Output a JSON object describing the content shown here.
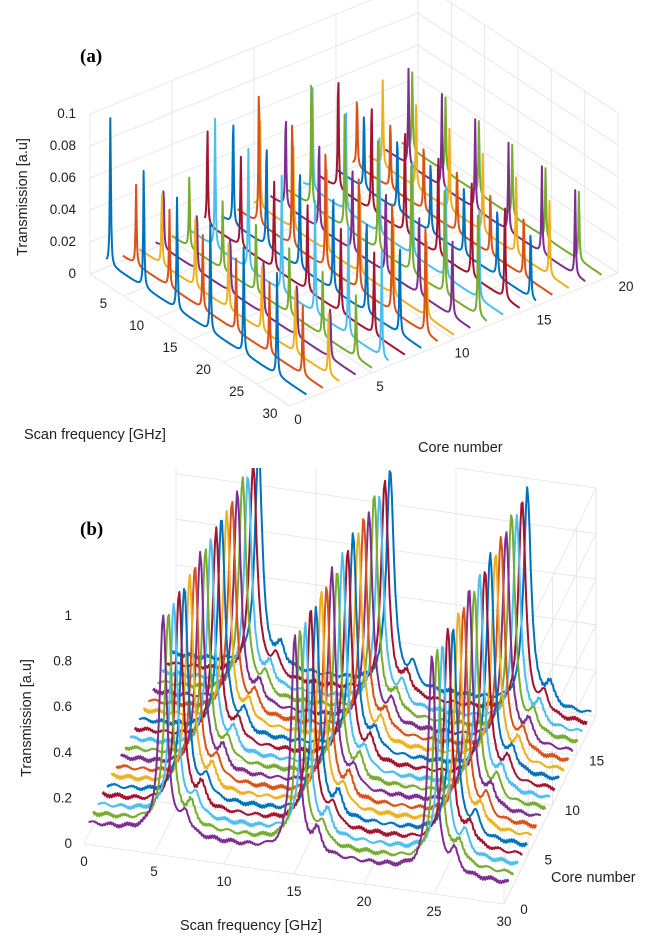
{
  "chart_data": [
    {
      "panel_label": "(a)",
      "type": "line",
      "projection": "3d-waterfall",
      "grid": true,
      "title": "",
      "xlabel": "Scan frequency [GHz]",
      "ylabel": "Core number",
      "zlabel": "Transmission [a.u]",
      "xlim": [
        0,
        30
      ],
      "ylim": [
        0,
        20
      ],
      "zlim": [
        0,
        0.1
      ],
      "x_ticks": [
        "5",
        "10",
        "15",
        "20",
        "25",
        "30"
      ],
      "y_ticks": [
        "0",
        "5",
        "10",
        "15",
        "20"
      ],
      "z_ticks": [
        "0",
        "0.02",
        "0.04",
        "0.06",
        "0.08",
        "0.1"
      ],
      "series_colors": [
        "#0072BD",
        "#D95319",
        "#EDB120",
        "#7E2F8E",
        "#77AC30",
        "#4DBEEE",
        "#A2142F"
      ],
      "series": [
        {
          "core": 1,
          "baseline": 0.003,
          "peaks": [
            {
              "x": 0.6,
              "h": 0.095
            },
            {
              "x": 5.6,
              "h": 0.075
            },
            {
              "x": 10.6,
              "h": 0.072
            },
            {
              "x": 15.6,
              "h": 0.07
            },
            {
              "x": 20.6,
              "h": 0.068
            },
            {
              "x": 25.6,
              "h": 0.066
            }
          ]
        },
        {
          "core": 2,
          "baseline": 0.003,
          "peaks": [
            {
              "x": 2.0,
              "h": 0.05
            },
            {
              "x": 7.0,
              "h": 0.048
            },
            {
              "x": 12.0,
              "h": 0.046
            },
            {
              "x": 17.0,
              "h": 0.045
            },
            {
              "x": 22.0,
              "h": 0.044
            },
            {
              "x": 27.0,
              "h": 0.043
            }
          ]
        },
        {
          "core": 3,
          "baseline": 0.003,
          "peaks": [
            {
              "x": 3.4,
              "h": 0.045
            },
            {
              "x": 8.4,
              "h": 0.043
            },
            {
              "x": 13.4,
              "h": 0.042
            },
            {
              "x": 18.4,
              "h": 0.041
            },
            {
              "x": 23.4,
              "h": 0.04
            },
            {
              "x": 28.4,
              "h": 0.039
            }
          ]
        },
        {
          "core": 4,
          "baseline": 0.003,
          "peaks": [
            {
              "x": 1.2,
              "h": 0.04
            },
            {
              "x": 6.2,
              "h": 0.038
            },
            {
              "x": 11.2,
              "h": 0.037
            },
            {
              "x": 16.2,
              "h": 0.036
            },
            {
              "x": 21.2,
              "h": 0.035
            },
            {
              "x": 26.2,
              "h": 0.034
            }
          ]
        },
        {
          "core": 5,
          "baseline": 0.003,
          "peaks": [
            {
              "x": 2.6,
              "h": 0.045
            },
            {
              "x": 7.6,
              "h": 0.044
            },
            {
              "x": 12.6,
              "h": 0.043
            },
            {
              "x": 17.6,
              "h": 0.042
            },
            {
              "x": 22.6,
              "h": 0.041
            },
            {
              "x": 27.6,
              "h": 0.04
            }
          ]
        },
        {
          "core": 6,
          "baseline": 0.003,
          "peaks": [
            {
              "x": 4.0,
              "h": 0.08
            },
            {
              "x": 9.0,
              "h": 0.075
            },
            {
              "x": 14.0,
              "h": 0.072
            },
            {
              "x": 19.0,
              "h": 0.07
            },
            {
              "x": 24.0,
              "h": 0.068
            },
            {
              "x": 29.0,
              "h": 0.066
            }
          ]
        },
        {
          "core": 7,
          "baseline": 0.003,
          "peaks": [
            {
              "x": 0.4,
              "h": 0.06
            },
            {
              "x": 5.4,
              "h": 0.058
            },
            {
              "x": 10.4,
              "h": 0.056
            },
            {
              "x": 15.4,
              "h": 0.055
            },
            {
              "x": 20.4,
              "h": 0.054
            },
            {
              "x": 25.4,
              "h": 0.053
            }
          ]
        },
        {
          "core": 8,
          "baseline": 0.003,
          "peaks": [
            {
              "x": 1.8,
              "h": 0.07
            },
            {
              "x": 6.8,
              "h": 0.068
            },
            {
              "x": 11.8,
              "h": 0.066
            },
            {
              "x": 16.8,
              "h": 0.064
            },
            {
              "x": 21.8,
              "h": 0.062
            },
            {
              "x": 26.8,
              "h": 0.06
            }
          ]
        },
        {
          "core": 9,
          "baseline": 0.003,
          "peaks": [
            {
              "x": 3.2,
              "h": 0.09
            },
            {
              "x": 8.2,
              "h": 0.085
            },
            {
              "x": 13.2,
              "h": 0.08
            },
            {
              "x": 18.2,
              "h": 0.078
            },
            {
              "x": 23.2,
              "h": 0.076
            },
            {
              "x": 28.2,
              "h": 0.074
            }
          ]
        },
        {
          "core": 10,
          "baseline": 0.003,
          "peaks": [
            {
              "x": 0.9,
              "h": 0.055
            },
            {
              "x": 5.9,
              "h": 0.053
            },
            {
              "x": 10.9,
              "h": 0.052
            },
            {
              "x": 15.9,
              "h": 0.05
            },
            {
              "x": 20.9,
              "h": 0.049
            },
            {
              "x": 25.9,
              "h": 0.048
            }
          ]
        },
        {
          "core": 11,
          "baseline": 0.003,
          "peaks": [
            {
              "x": 2.3,
              "h": 0.06
            },
            {
              "x": 7.3,
              "h": 0.058
            },
            {
              "x": 12.3,
              "h": 0.056
            },
            {
              "x": 17.3,
              "h": 0.055
            },
            {
              "x": 22.3,
              "h": 0.054
            },
            {
              "x": 27.3,
              "h": 0.053
            }
          ]
        },
        {
          "core": 12,
          "baseline": 0.003,
          "peaks": [
            {
              "x": 3.7,
              "h": 0.085
            },
            {
              "x": 8.7,
              "h": 0.08
            },
            {
              "x": 13.7,
              "h": 0.077
            },
            {
              "x": 18.7,
              "h": 0.075
            },
            {
              "x": 23.7,
              "h": 0.073
            },
            {
              "x": 28.7,
              "h": 0.071
            }
          ]
        },
        {
          "core": 13,
          "baseline": 0.003,
          "peaks": [
            {
              "x": 1.4,
              "h": 0.065
            },
            {
              "x": 6.4,
              "h": 0.063
            },
            {
              "x": 11.4,
              "h": 0.061
            },
            {
              "x": 16.4,
              "h": 0.06
            },
            {
              "x": 21.4,
              "h": 0.058
            },
            {
              "x": 26.4,
              "h": 0.057
            }
          ]
        },
        {
          "core": 14,
          "baseline": 0.003,
          "peaks": [
            {
              "x": 2.8,
              "h": 0.075
            },
            {
              "x": 7.8,
              "h": 0.072
            },
            {
              "x": 12.8,
              "h": 0.07
            },
            {
              "x": 17.8,
              "h": 0.068
            },
            {
              "x": 22.8,
              "h": 0.066
            },
            {
              "x": 27.8,
              "h": 0.064
            }
          ]
        },
        {
          "core": 15,
          "baseline": 0.003,
          "peaks": [
            {
              "x": 4.2,
              "h": 0.05
            },
            {
              "x": 9.2,
              "h": 0.048
            },
            {
              "x": 14.2,
              "h": 0.047
            },
            {
              "x": 19.2,
              "h": 0.046
            },
            {
              "x": 24.2,
              "h": 0.045
            },
            {
              "x": 29.2,
              "h": 0.044
            }
          ]
        },
        {
          "core": 16,
          "baseline": 0.003,
          "peaks": [
            {
              "x": 0.7,
              "h": 0.045
            },
            {
              "x": 5.7,
              "h": 0.044
            },
            {
              "x": 10.7,
              "h": 0.043
            },
            {
              "x": 15.7,
              "h": 0.042
            },
            {
              "x": 20.7,
              "h": 0.041
            },
            {
              "x": 25.7,
              "h": 0.04
            }
          ]
        },
        {
          "core": 17,
          "baseline": 0.003,
          "peaks": [
            {
              "x": 2.1,
              "h": 0.055
            },
            {
              "x": 7.1,
              "h": 0.053
            },
            {
              "x": 12.1,
              "h": 0.052
            },
            {
              "x": 17.1,
              "h": 0.05
            },
            {
              "x": 22.1,
              "h": 0.049
            },
            {
              "x": 27.1,
              "h": 0.048
            }
          ]
        },
        {
          "core": 18,
          "baseline": 0.003,
          "peaks": [
            {
              "x": 3.5,
              "h": 0.06
            },
            {
              "x": 8.5,
              "h": 0.058
            },
            {
              "x": 13.5,
              "h": 0.056
            },
            {
              "x": 18.5,
              "h": 0.055
            },
            {
              "x": 23.5,
              "h": 0.054
            },
            {
              "x": 28.5,
              "h": 0.053
            }
          ]
        },
        {
          "core": 19,
          "baseline": 0.003,
          "peaks": [
            {
              "x": 1.6,
              "h": 0.05
            },
            {
              "x": 6.6,
              "h": 0.048
            },
            {
              "x": 11.6,
              "h": 0.047
            },
            {
              "x": 16.6,
              "h": 0.046
            },
            {
              "x": 21.6,
              "h": 0.045
            },
            {
              "x": 26.6,
              "h": 0.044
            }
          ]
        }
      ]
    },
    {
      "panel_label": "(b)",
      "type": "line",
      "projection": "3d-waterfall",
      "grid": true,
      "title": "",
      "xlabel": "Scan frequency [GHz]",
      "ylabel": "Core number",
      "zlabel": "Transmission [a.u]",
      "xlim": [
        0,
        30
      ],
      "ylim": [
        0,
        19
      ],
      "zlim": [
        0,
        1
      ],
      "x_ticks": [
        "0",
        "5",
        "10",
        "15",
        "20",
        "25",
        "30"
      ],
      "y_ticks": [
        "0",
        "5",
        "10",
        "15"
      ],
      "z_ticks": [
        "0",
        "0.2",
        "0.4",
        "0.6",
        "0.8",
        "1"
      ],
      "series_colors": [
        "#7E2F8E",
        "#77AC30",
        "#4DBEEE",
        "#A2142F",
        "#0072BD",
        "#EDB120",
        "#D95319"
      ],
      "peak_positions": [
        5.8,
        15.2,
        25.0
      ],
      "series": [
        {
          "core": 1,
          "baseline": 0.05,
          "peak_height": 1.0
        },
        {
          "core": 2,
          "baseline": 0.05,
          "peak_height": 0.98
        },
        {
          "core": 3,
          "baseline": 0.05,
          "peak_height": 0.97
        },
        {
          "core": 4,
          "baseline": 0.05,
          "peak_height": 0.99
        },
        {
          "core": 5,
          "baseline": 0.05,
          "peak_height": 0.96
        },
        {
          "core": 6,
          "baseline": 0.05,
          "peak_height": 0.98
        },
        {
          "core": 7,
          "baseline": 0.05,
          "peak_height": 0.97
        },
        {
          "core": 8,
          "baseline": 0.05,
          "peak_height": 1.0
        },
        {
          "core": 9,
          "baseline": 0.05,
          "peak_height": 0.96
        },
        {
          "core": 10,
          "baseline": 0.05,
          "peak_height": 0.98
        },
        {
          "core": 11,
          "baseline": 0.05,
          "peak_height": 0.97
        },
        {
          "core": 12,
          "baseline": 0.05,
          "peak_height": 0.99
        },
        {
          "core": 13,
          "baseline": 0.05,
          "peak_height": 0.96
        },
        {
          "core": 14,
          "baseline": 0.05,
          "peak_height": 0.98
        },
        {
          "core": 15,
          "baseline": 0.05,
          "peak_height": 0.97
        },
        {
          "core": 16,
          "baseline": 0.05,
          "peak_height": 1.0
        },
        {
          "core": 17,
          "baseline": 0.05,
          "peak_height": 0.96
        },
        {
          "core": 18,
          "baseline": 0.05,
          "peak_height": 0.98
        },
        {
          "core": 19,
          "baseline": 0.05,
          "peak_height": 1.0
        }
      ]
    }
  ]
}
